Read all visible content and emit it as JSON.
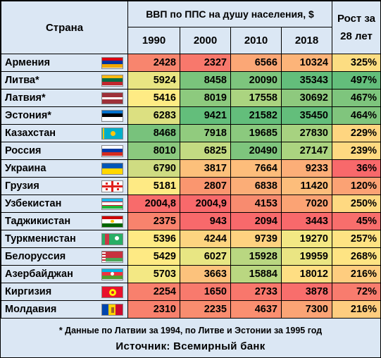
{
  "header": {
    "country": "Страна",
    "gdp": "ВВП по ППС на душу населения, $",
    "growth": "Рост за 28 лет",
    "years": [
      "1990",
      "2000",
      "2010",
      "2018"
    ]
  },
  "rows": [
    {
      "name": "Армения",
      "values": [
        "2428",
        "2327",
        "6566",
        "10324"
      ],
      "growth": "325%",
      "flag": "armenia-flag",
      "colors": [
        "#f8856e",
        "#f8786c",
        "#fba776",
        "#fcb479",
        "#fcdd82"
      ]
    },
    {
      "name": "Литва*",
      "values": [
        "5924",
        "8458",
        "20090",
        "35343"
      ],
      "growth": "497%",
      "flag": "lithuania-flag",
      "colors": [
        "#e9e583",
        "#7ac47c",
        "#7dc57d",
        "#63be7b",
        "#63be7b"
      ]
    },
    {
      "name": "Латвия*",
      "values": [
        "5416",
        "8019",
        "17558",
        "30692"
      ],
      "growth": "467%",
      "flag": "latvia-flag",
      "colors": [
        "#feeb84",
        "#8dca7e",
        "#abd480",
        "#8ec97e",
        "#7ec57d"
      ]
    },
    {
      "name": "Эстония*",
      "values": [
        "6283",
        "9421",
        "21582",
        "35450"
      ],
      "growth": "464%",
      "flag": "estonia-flag",
      "colors": [
        "#dce081",
        "#63be7b",
        "#63be7b",
        "#63be7b",
        "#80c57d"
      ]
    },
    {
      "name": "Казахстан",
      "values": [
        "8468",
        "7918",
        "19685",
        "27830"
      ],
      "growth": "229%",
      "flag": "kazakhstan-flag",
      "colors": [
        "#78c27c",
        "#91cb7e",
        "#8bc97e",
        "#a7d280",
        "#fed580"
      ]
    },
    {
      "name": "Россия",
      "values": [
        "8010",
        "6825",
        "20490",
        "27147"
      ],
      "growth": "239%",
      "flag": "russia-flag",
      "colors": [
        "#8bc97e",
        "#c3db82",
        "#7ec57d",
        "#abd480",
        "#fed981"
      ]
    },
    {
      "name": "Украина",
      "values": [
        "6790",
        "3817",
        "7664",
        "9233"
      ],
      "growth": "36%",
      "flag": "ukraine-flag",
      "colors": [
        "#cfdc82",
        "#fcc07b",
        "#fdbd7b",
        "#fcae78",
        "#f8696b"
      ]
    },
    {
      "name": "Грузия",
      "values": [
        "5181",
        "2807",
        "6838",
        "11420"
      ],
      "growth": "120%",
      "flag": "georgia-flag",
      "colors": [
        "#feea84",
        "#fa966f",
        "#fbad77",
        "#fcbd7b",
        "#fba274"
      ]
    },
    {
      "name": "Узбекистан",
      "values": [
        "2004,8",
        "2004,9",
        "4153",
        "7020"
      ],
      "growth": "250%",
      "flag": "uzbekistan-flag",
      "colors": [
        "#f86b6b",
        "#f8696b",
        "#f88b6f",
        "#fba374",
        "#fed981"
      ]
    },
    {
      "name": "Таджикистан",
      "values": [
        "2375",
        "943",
        "2094",
        "3443"
      ],
      "growth": "45%",
      "flag": "tajikistan-flag",
      "colors": [
        "#f8836d",
        "#f8696b",
        "#f8696b",
        "#f8696b",
        "#f86e6c"
      ]
    },
    {
      "name": "Туркменистан",
      "values": [
        "5396",
        "4244",
        "9739",
        "19270"
      ],
      "growth": "257%",
      "flag": "turkmenistan-flag",
      "colors": [
        "#feea84",
        "#fdd480",
        "#fed280",
        "#f3e884",
        "#fee383"
      ]
    },
    {
      "name": "Белоруссия",
      "values": [
        "5429",
        "6027",
        "15928",
        "19959"
      ],
      "growth": "268%",
      "flag": "belarus-flag",
      "colors": [
        "#feea84",
        "#e8e683",
        "#b9d781",
        "#eae583",
        "#fee483"
      ]
    },
    {
      "name": "Азербайджан",
      "values": [
        "5703",
        "3663",
        "15884",
        "18012"
      ],
      "growth": "216%",
      "flag": "azerbaijan-flag",
      "colors": [
        "#f3e884",
        "#fcc27c",
        "#bad781",
        "#fede83",
        "#fecd7f"
      ]
    },
    {
      "name": "Киргизия",
      "values": [
        "2254",
        "1650",
        "2733",
        "3878"
      ],
      "growth": "72%",
      "flag": "kyrgyzstan-flag",
      "colors": [
        "#f8806d",
        "#f87a6d",
        "#f8776c",
        "#f86e6c",
        "#f87c6e"
      ]
    },
    {
      "name": "Молдавия",
      "values": [
        "2310",
        "2235",
        "4637",
        "7300"
      ],
      "growth": "216%",
      "flag": "moldova-flag",
      "colors": [
        "#f8816d",
        "#f98d6f",
        "#fa8f70",
        "#fba475",
        "#fecd7f"
      ]
    }
  ],
  "footer": {
    "note": "* Данные по Латвии за 1994, по Литве и Эстонии за 1995 год",
    "source": "Источник: Всемирный банк"
  }
}
